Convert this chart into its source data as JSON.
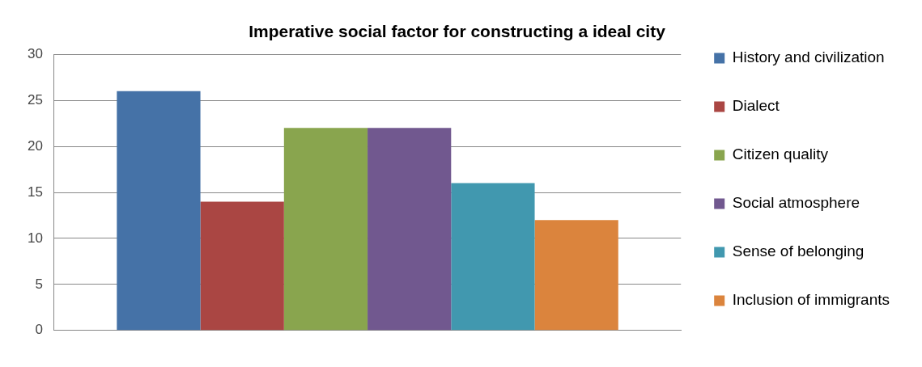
{
  "chart_data": {
    "type": "bar",
    "title": "Imperative social factor for constructing a ideal city",
    "categories": [
      null
    ],
    "series": [
      {
        "name": "History and civilization",
        "color": "#4572a7",
        "values": [
          26
        ]
      },
      {
        "name": "Dialect",
        "color": "#aa4643",
        "values": [
          14
        ]
      },
      {
        "name": "Citizen quality",
        "color": "#89a54e",
        "values": [
          22
        ]
      },
      {
        "name": "Social atmosphere",
        "color": "#71588f",
        "values": [
          22
        ]
      },
      {
        "name": "Sense of belonging",
        "color": "#4198af",
        "values": [
          16
        ]
      },
      {
        "name": "Inclusion of immigrants",
        "color": "#db843d",
        "values": [
          12
        ]
      }
    ],
    "ylim": [
      0,
      30
    ],
    "yticks": [
      0,
      5,
      10,
      15,
      20,
      25,
      30
    ],
    "grid": "y",
    "legend": "right"
  }
}
